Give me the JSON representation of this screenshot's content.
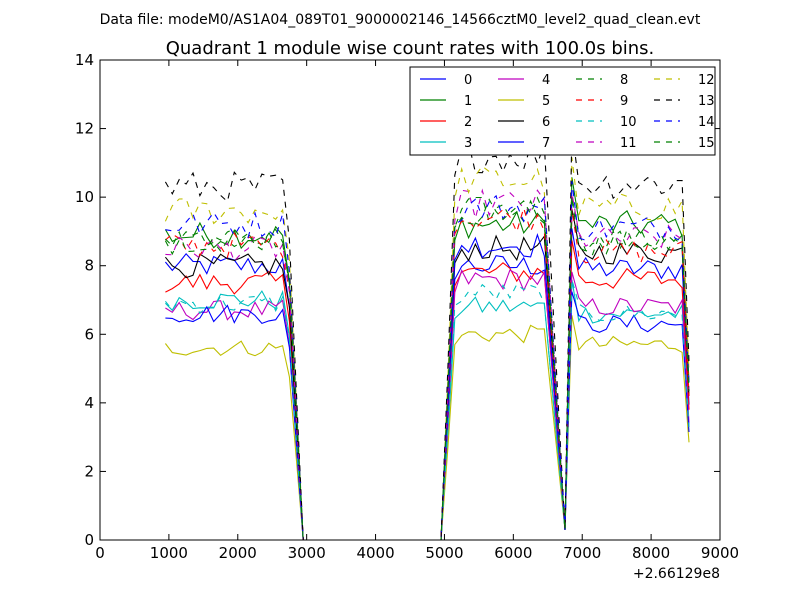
{
  "chart_data": {
    "type": "line",
    "suptitle": "Data file: modeM0/AS1A04_089T01_9000002146_14566cztM0_level2_quad_clean.evt",
    "title": "Quadrant 1 module wise count rates with 100.0s bins.",
    "xlabel": "",
    "ylabel": "",
    "x_offset_label": "+2.66129e8",
    "xlim": [
      0,
      9000
    ],
    "ylim": [
      0,
      14
    ],
    "xticks": [
      0,
      1000,
      2000,
      3000,
      4000,
      5000,
      6000,
      7000,
      8000,
      9000
    ],
    "yticks": [
      0,
      2,
      4,
      6,
      8,
      10,
      12,
      14
    ],
    "x_tick_labels": [
      "0",
      "1000",
      "2000",
      "3000",
      "4000",
      "5000",
      "6000",
      "7000",
      "8000",
      "9000"
    ],
    "y_tick_labels": [
      "0",
      "2",
      "4",
      "6",
      "8",
      "10",
      "12",
      "14"
    ],
    "legend_position": "top-right",
    "legend_columns": 4,
    "segments": [
      {
        "start": 950,
        "step": 100,
        "count": 19
      },
      {
        "start": 5050,
        "step": 100,
        "count": 15
      },
      {
        "start": 6850,
        "step": 100,
        "count": 18
      }
    ],
    "transitions": [
      {
        "from": 2750,
        "to": 3050,
        "at": 2950,
        "value": 0
      },
      {
        "from": 6450,
        "to": 6850,
        "at": 6750,
        "value": 0.3
      }
    ],
    "series": [
      {
        "name": "0",
        "color": "#0000ff",
        "dash": "solid",
        "levels": [
          8.0,
          8.0,
          7.9
        ],
        "zero_start": 2950
      },
      {
        "name": "1",
        "color": "#008000",
        "dash": "solid",
        "levels": [
          8.9,
          9.2,
          9.2
        ]
      },
      {
        "name": "2",
        "color": "#ff0000",
        "dash": "solid",
        "levels": [
          7.5,
          7.8,
          7.6
        ]
      },
      {
        "name": "3",
        "color": "#00bfbf",
        "dash": "solid",
        "levels": [
          7.0,
          6.8,
          6.6
        ]
      },
      {
        "name": "4",
        "color": "#bf00bf",
        "dash": "solid",
        "levels": [
          6.7,
          7.6,
          6.8
        ]
      },
      {
        "name": "5",
        "color": "#bfbf00",
        "dash": "solid",
        "levels": [
          5.6,
          6.0,
          5.7
        ]
      },
      {
        "name": "6",
        "color": "#000000",
        "dash": "solid",
        "levels": [
          8.0,
          8.5,
          8.4
        ]
      },
      {
        "name": "7",
        "color": "#0000ff",
        "dash": "solid",
        "levels": [
          6.6,
          8.6,
          6.3
        ]
      },
      {
        "name": "8",
        "color": "#008000",
        "dash": "dashed",
        "levels": [
          8.7,
          9.6,
          8.7
        ]
      },
      {
        "name": "9",
        "color": "#ff0000",
        "dash": "dashed",
        "levels": [
          8.6,
          9.4,
          8.4
        ]
      },
      {
        "name": "10",
        "color": "#00bfbf",
        "dash": "dashed",
        "levels": [
          6.9,
          7.2,
          6.6
        ]
      },
      {
        "name": "11",
        "color": "#bf00bf",
        "dash": "dashed",
        "levels": [
          8.5,
          9.8,
          8.8
        ]
      },
      {
        "name": "12",
        "color": "#bfbf00",
        "dash": "dashed",
        "levels": [
          9.6,
          10.5,
          9.7
        ]
      },
      {
        "name": "13",
        "color": "#000000",
        "dash": "dashed",
        "levels": [
          10.3,
          11.2,
          10.4
        ]
      },
      {
        "name": "14",
        "color": "#0000ff",
        "dash": "dashed",
        "levels": [
          9.2,
          9.7,
          9.1
        ]
      },
      {
        "name": "15",
        "color": "#008000",
        "dash": "dashed",
        "levels": [
          8.8,
          9.6,
          8.7
        ]
      }
    ]
  }
}
